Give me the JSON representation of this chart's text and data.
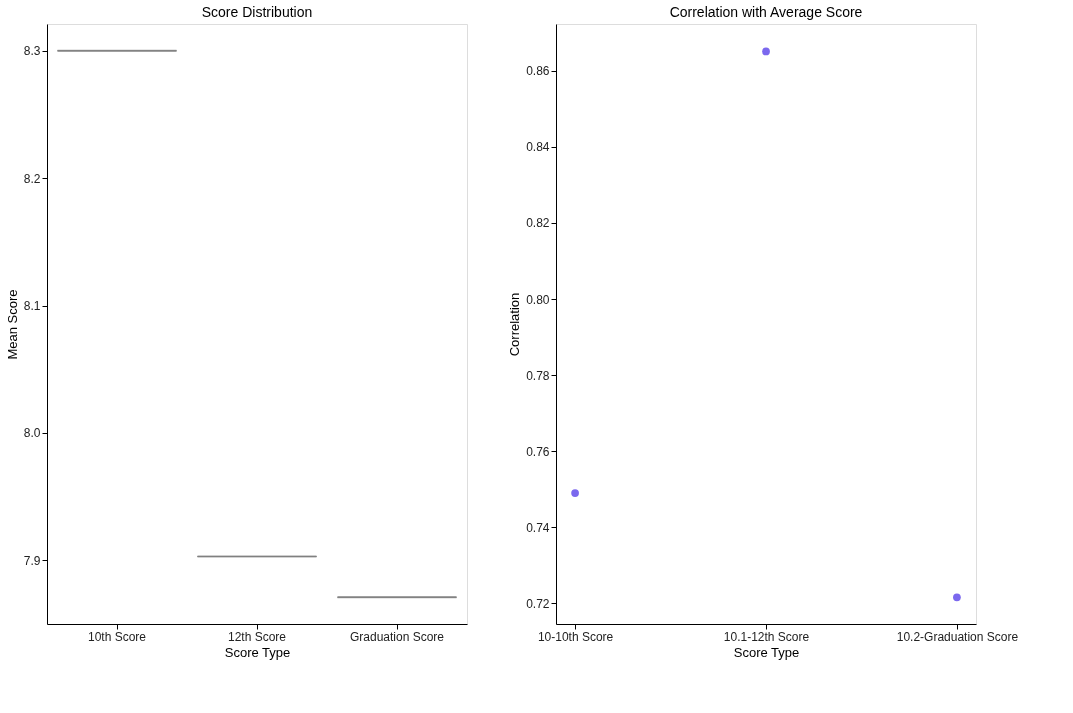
{
  "chart_data": [
    {
      "type": "box",
      "title": "Score Distribution",
      "xlabel": "Score Type",
      "ylabel": "Mean Score",
      "categories": [
        "10th Score",
        "12th Score",
        "Graduation Score"
      ],
      "color": "#808080",
      "boxes": [
        {
          "low": 8.3,
          "q1": 8.3,
          "median": 8.3,
          "q3": 8.3,
          "high": 8.3
        },
        {
          "low": 7.903,
          "q1": 7.903,
          "median": 7.903,
          "q3": 7.903,
          "high": 7.903
        },
        {
          "low": 7.871,
          "q1": 7.871,
          "median": 7.871,
          "q3": 7.871,
          "high": 7.871
        }
      ],
      "ylim": [
        7.85,
        8.321
      ],
      "yticks": [
        7.9,
        {
          "value": 8.0,
          "label": "8.0"
        },
        8.1,
        8.2,
        8.3
      ],
      "grid": false
    },
    {
      "type": "scatter",
      "title": "Correlation with Average Score",
      "xlabel": "Score Type",
      "ylabel": "Correlation",
      "categories": [
        "10-10th Score",
        "10.1-12th Score",
        "10.2-Graduation Score"
      ],
      "series": [
        {
          "color": "#7b68ee",
          "values": [
            0.749,
            0.8651,
            0.7216
          ]
        }
      ],
      "ylim": [
        0.7146,
        0.8723
      ],
      "yticks": [
        0.72,
        0.74,
        0.76,
        0.78,
        {
          "value": 0.8,
          "label": "0.80"
        },
        0.82,
        0.84,
        0.86
      ],
      "grid": false,
      "marker": "circle"
    }
  ]
}
